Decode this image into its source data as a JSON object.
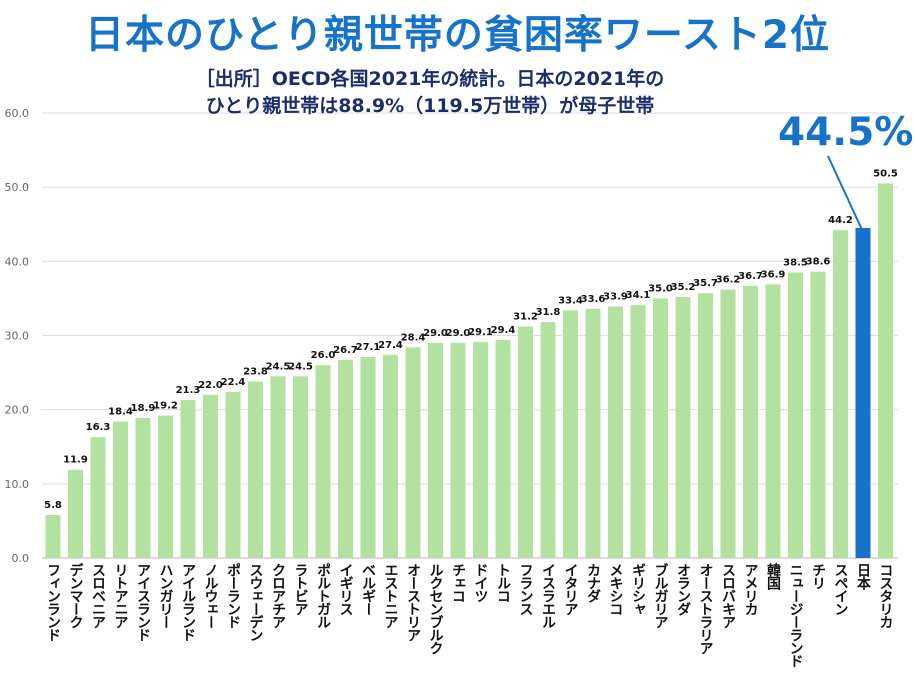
{
  "title": "日本のひとり親世帯の貧困率ワースト2位",
  "subtitle_line1": "［出所］OECD各国2021年の統計。日本の2021年の",
  "subtitle_line2": "ひとり親世帯は88.9%（119.5万世帯）が母子世帯",
  "callout": "44.5%",
  "colors": {
    "bar": "#b3e19f",
    "highlight": "#1673c9",
    "title": "#1673c9",
    "subtitle": "#1b2d6b"
  },
  "chart_data": {
    "type": "bar",
    "title": "日本のひとり親世帯の貧困率ワースト2位",
    "xlabel": "",
    "ylabel": "",
    "ylim": [
      0,
      60
    ],
    "yticks": [
      "0.0",
      "10.0",
      "20.0",
      "30.0",
      "40.0",
      "50.0",
      "60.0"
    ],
    "grid": true,
    "highlight": "日本",
    "categories": [
      "フィンランド",
      "デンマーク",
      "スロベニア",
      "リトアニア",
      "アイスランド",
      "ハンガリー",
      "アイルランド",
      "ノルウェー",
      "ポーランド",
      "スウェーデン",
      "クロアチア",
      "ラトビア",
      "ポルトガル",
      "イギリス",
      "ベルギー",
      "エストニア",
      "オーストリア",
      "ルクセンブルク",
      "チェコ",
      "ドイツ",
      "トルコ",
      "フランス",
      "イスラエル",
      "イタリア",
      "カナダ",
      "メキシコ",
      "ギリシャ",
      "ブルガリア",
      "オランダ",
      "オーストラリア",
      "スロバキア",
      "アメリカ",
      "韓国",
      "ニュージーランド",
      "チリ",
      "スペイン",
      "日本",
      "コスタリカ"
    ],
    "values": [
      5.8,
      11.9,
      16.3,
      18.4,
      18.9,
      19.2,
      21.3,
      22.0,
      22.4,
      23.8,
      24.5,
      24.5,
      26.0,
      26.7,
      27.1,
      27.4,
      28.4,
      29.0,
      29.0,
      29.1,
      29.4,
      31.2,
      31.8,
      33.4,
      33.6,
      33.9,
      34.1,
      35.0,
      35.2,
      35.7,
      36.2,
      36.7,
      36.9,
      38.5,
      38.6,
      44.2,
      44.5,
      50.5
    ],
    "data_labels": [
      "5.8",
      "11.9",
      "16.3",
      "18.4",
      "18.9",
      "19.2",
      "21.3",
      "22.0",
      "22.4",
      "23.8",
      "24.5",
      "24.5",
      "26.0",
      "26.7",
      "27.1",
      "27.4",
      "28.4",
      "29.0",
      "29.0",
      "29.1",
      "29.4",
      "31.2",
      "31.8",
      "33.4",
      "33.6",
      "33.9",
      "34.1",
      "35.0",
      "35.2",
      "35.7",
      "36.2",
      "36.7",
      "36.9",
      "38.5",
      "38.6",
      "44.2",
      "",
      "50.5"
    ]
  }
}
